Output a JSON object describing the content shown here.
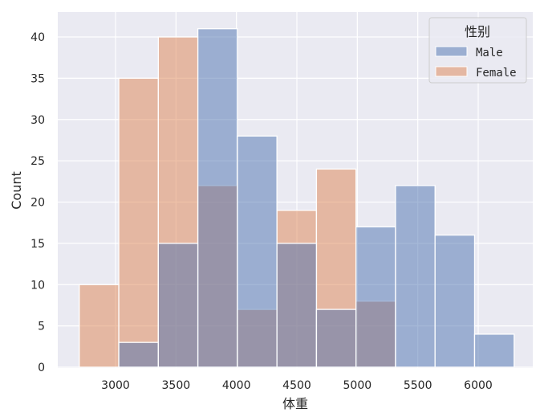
{
  "chart_data": {
    "type": "bar",
    "subtype": "overlapping-histogram",
    "title": "",
    "xlabel": "体重",
    "ylabel": "Count",
    "xlim": [
      2520,
      6450
    ],
    "ylim": [
      0,
      43
    ],
    "xticks": [
      3000,
      3500,
      4000,
      4500,
      5000,
      5500,
      6000
    ],
    "yticks": [
      0,
      5,
      10,
      15,
      20,
      25,
      30,
      35,
      40
    ],
    "grid": true,
    "legend": {
      "title": "性别",
      "position": "upper right",
      "entries": [
        "Male",
        "Female"
      ]
    },
    "bin_edges": [
      2700,
      3027,
      3354,
      3681,
      4008,
      4335,
      4662,
      4989,
      5316,
      5643,
      5970,
      6297
    ],
    "series": [
      {
        "name": "Male",
        "color": "#4c72b0",
        "values": [
          0,
          3,
          15,
          41,
          28,
          15,
          7,
          17,
          22,
          16,
          4
        ]
      },
      {
        "name": "Female",
        "color": "#dd8452",
        "values": [
          10,
          35,
          40,
          22,
          7,
          19,
          24,
          8,
          0,
          0,
          0
        ]
      }
    ]
  },
  "axes": {
    "xlabel": "体重",
    "ylabel": "Count"
  },
  "legend": {
    "title": "性别",
    "items": [
      {
        "label": "Male",
        "color": "#4c72b0"
      },
      {
        "label": "Female",
        "color": "#dd8452"
      }
    ]
  },
  "colors": {
    "background": "#eaeaf2",
    "grid": "#ffffff",
    "male": "#4c72b0",
    "female": "#dd8452"
  }
}
